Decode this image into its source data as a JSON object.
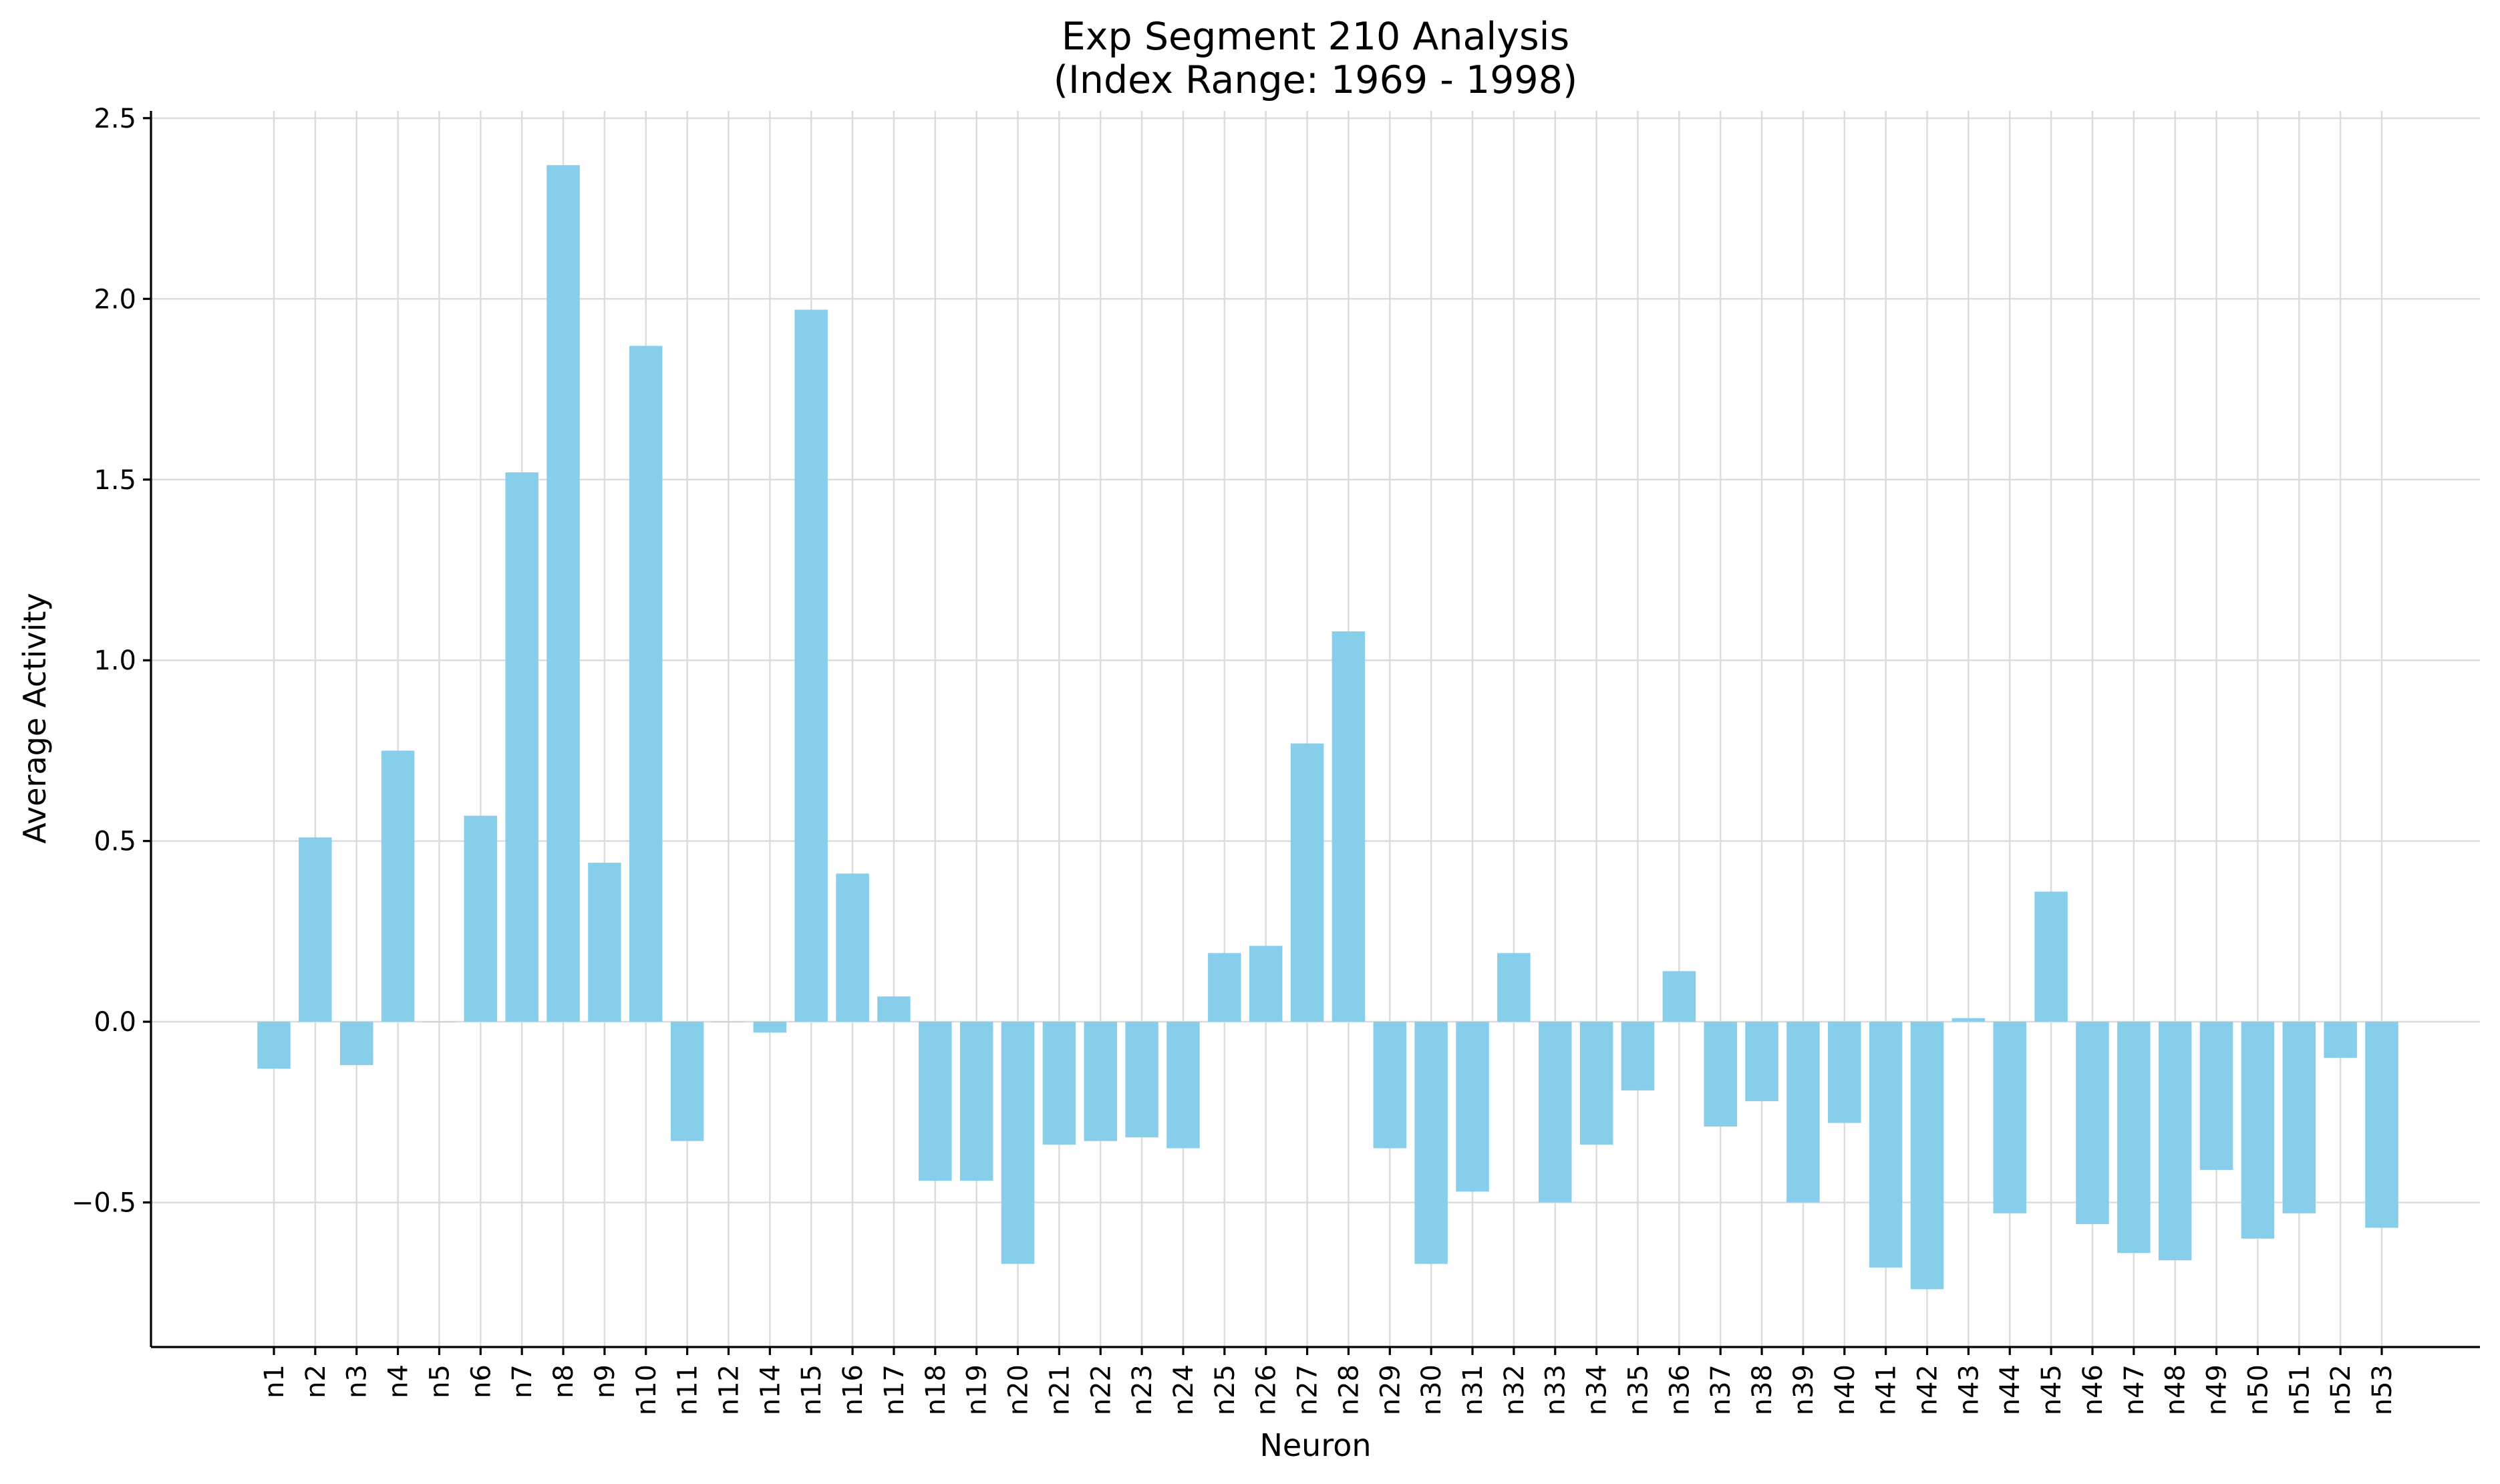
{
  "colors": {
    "bar": "#87CEEB",
    "grid": "#dcdcdc",
    "axis": "#000000"
  },
  "chart_data": {
    "type": "bar",
    "title": "Exp Segment 210 Analysis",
    "subtitle": "(Index Range: 1969 - 1998)",
    "xlabel": "Neuron",
    "ylabel": "Average Activity",
    "ylim": [
      -0.9,
      2.52
    ],
    "yticks": [
      -0.5,
      0.0,
      0.5,
      1.0,
      1.5,
      2.0,
      2.5
    ],
    "ytick_labels": [
      "−0.5",
      "0.0",
      "0.5",
      "1.0",
      "1.5",
      "2.0",
      "2.5"
    ],
    "grid": true,
    "categories": [
      "n1",
      "n2",
      "n3",
      "n4",
      "n5",
      "n6",
      "n7",
      "n8",
      "n9",
      "n10",
      "n11",
      "n12",
      "n14",
      "n15",
      "n16",
      "n17",
      "n18",
      "n19",
      "n20",
      "n21",
      "n22",
      "n23",
      "n24",
      "n25",
      "n26",
      "n27",
      "n28",
      "n29",
      "n30",
      "n31",
      "n32",
      "n33",
      "n34",
      "n35",
      "n36",
      "n37",
      "n38",
      "n39",
      "n40",
      "n41",
      "n42",
      "n43",
      "n44",
      "n45",
      "n46",
      "n47",
      "n48",
      "n49",
      "n50",
      "n51",
      "n52",
      "n53"
    ],
    "values": [
      -0.13,
      0.51,
      -0.12,
      0.75,
      0.0,
      0.57,
      1.52,
      2.37,
      0.44,
      1.87,
      -0.33,
      0.0,
      -0.03,
      1.97,
      0.41,
      0.07,
      -0.44,
      -0.44,
      -0.67,
      -0.34,
      -0.33,
      -0.32,
      -0.35,
      0.19,
      0.21,
      0.77,
      1.08,
      -0.35,
      -0.67,
      -0.47,
      0.19,
      -0.5,
      -0.34,
      -0.19,
      0.14,
      -0.29,
      -0.22,
      -0.5,
      -0.28,
      -0.68,
      -0.74,
      0.01,
      -0.53,
      0.36,
      -0.56,
      -0.64,
      -0.66,
      -0.41,
      -0.6,
      -0.53,
      -0.1,
      -0.57
    ]
  }
}
